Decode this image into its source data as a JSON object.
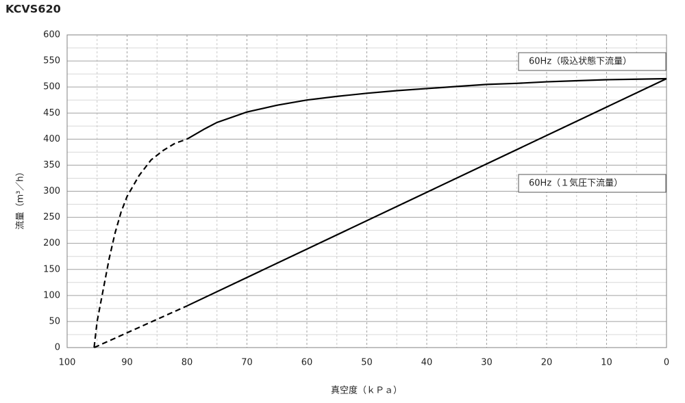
{
  "chart_data": {
    "type": "line",
    "title": "KCVS620",
    "x_label": "真空度（ｋＰａ）",
    "y_label": "流量（m³／h）",
    "xlim": [
      100,
      0
    ],
    "xticks": [
      100,
      90,
      80,
      70,
      60,
      50,
      40,
      30,
      20,
      10,
      0
    ],
    "xminorticks": [
      95,
      85,
      75,
      65,
      55,
      45,
      35,
      25,
      15,
      5
    ],
    "ylim": [
      0,
      600
    ],
    "yticks": [
      0,
      50,
      100,
      150,
      200,
      250,
      300,
      350,
      400,
      450,
      500,
      550,
      600
    ],
    "yminorticks": [
      25,
      75,
      125,
      175,
      225,
      275,
      325,
      375,
      425,
      475,
      525,
      575
    ],
    "grid": true,
    "series": [
      {
        "name": "60Hz（吸込状態下流量）",
        "color": "#000000",
        "parts": [
          {
            "linestyle": "dashed",
            "x": [
              95.5,
              95,
              94,
              93,
              92,
              91,
              90,
              88,
              86,
              84,
              82,
              80
            ],
            "values": [
              0,
              50,
              110,
              170,
              220,
              260,
              290,
              330,
              360,
              378,
              392,
              400
            ]
          },
          {
            "linestyle": "solid",
            "x": [
              80,
              77,
              75,
              70,
              65,
              60,
              55,
              50,
              45,
              40,
              35,
              30,
              25,
              20,
              15,
              10,
              5,
              0
            ],
            "values": [
              400,
              420,
              432,
              452,
              465,
              475,
              482,
              488,
              493,
              497,
              501,
              505,
              507,
              510,
              512,
              514,
              515,
              516
            ]
          }
        ]
      },
      {
        "name": "60Hz（１気圧下流量）",
        "color": "#000000",
        "parts": [
          {
            "linestyle": "dashed",
            "x": [
              95.5,
              80
            ],
            "values": [
              0,
              80
            ]
          },
          {
            "linestyle": "solid",
            "x": [
              80,
              0
            ],
            "values": [
              80,
              516
            ]
          }
        ]
      }
    ]
  }
}
